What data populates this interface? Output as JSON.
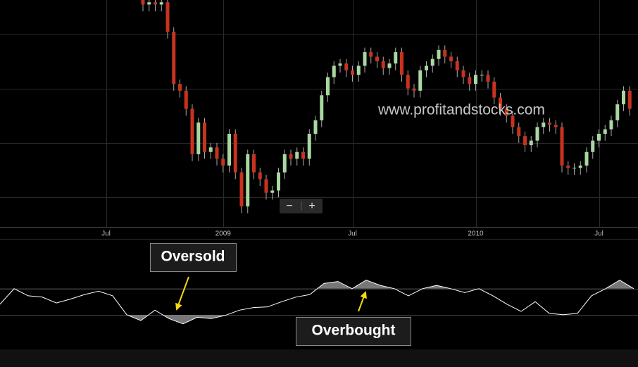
{
  "chart_data": [
    {
      "type": "candlestick",
      "watermark": "www.profitandstocks.com",
      "categories": [
        null,
        "Jul",
        null,
        null,
        null,
        null,
        null,
        null,
        null,
        null,
        null,
        null,
        null,
        null,
        null,
        null,
        null,
        null,
        null,
        null,
        "2009",
        null,
        null,
        null,
        null,
        null,
        null,
        null,
        null,
        null,
        null,
        null,
        null,
        null,
        null,
        null,
        null,
        null,
        null,
        null,
        null,
        "Jul",
        null,
        null,
        null,
        null,
        null,
        null,
        null,
        null,
        null,
        null,
        null,
        null,
        null,
        null,
        null,
        null,
        null,
        null,
        null,
        "2010",
        null,
        null,
        null,
        null,
        null,
        null,
        null,
        null,
        null,
        null,
        null,
        null,
        null,
        null,
        null,
        null,
        null,
        null,
        null,
        "Jul",
        null,
        null,
        null,
        null,
        null
      ],
      "open": [
        null,
        null,
        null,
        null,
        null,
        null,
        null,
        100,
        98,
        99,
        98,
        99,
        86,
        63,
        60,
        52,
        32,
        46,
        33,
        35,
        30,
        27,
        41,
        24,
        9,
        32,
        24,
        21,
        15,
        16,
        24,
        32,
        30,
        33,
        30,
        41,
        47,
        58,
        66,
        71,
        72,
        69,
        67,
        71,
        77,
        75,
        73,
        70,
        72,
        77,
        67,
        61,
        60,
        69,
        71,
        74,
        78,
        75,
        73,
        69,
        66,
        63,
        67,
        67,
        64,
        57,
        52,
        49,
        44,
        40,
        36,
        38,
        44,
        46,
        45,
        44,
        27,
        26,
        26,
        27,
        33,
        38,
        41,
        43,
        47,
        54,
        60
      ],
      "high": [
        null,
        null,
        null,
        null,
        null,
        null,
        null,
        102,
        101,
        101,
        101,
        101,
        88,
        65,
        62,
        54,
        48,
        48,
        37,
        37,
        32,
        43,
        43,
        26,
        34,
        34,
        26,
        23,
        18,
        26,
        34,
        34,
        35,
        35,
        43,
        49,
        60,
        68,
        73,
        74,
        74,
        71,
        73,
        79,
        79,
        77,
        75,
        74,
        79,
        79,
        69,
        63,
        71,
        73,
        76,
        80,
        80,
        77,
        75,
        71,
        68,
        69,
        69,
        69,
        66,
        59,
        54,
        51,
        46,
        42,
        40,
        46,
        48,
        48,
        47,
        46,
        29,
        28,
        29,
        35,
        40,
        43,
        45,
        49,
        56,
        62,
        62
      ],
      "low": [
        null,
        null,
        null,
        null,
        null,
        null,
        null,
        95,
        95,
        95,
        95,
        83,
        60,
        57,
        49,
        29,
        29,
        30,
        30,
        27,
        24,
        24,
        21,
        6,
        6,
        21,
        18,
        12,
        12,
        13,
        21,
        27,
        27,
        27,
        27,
        38,
        44,
        55,
        63,
        68,
        66,
        64,
        64,
        68,
        72,
        70,
        67,
        67,
        69,
        64,
        58,
        57,
        57,
        66,
        68,
        71,
        72,
        70,
        66,
        63,
        60,
        60,
        64,
        61,
        54,
        49,
        46,
        41,
        37,
        33,
        33,
        35,
        41,
        42,
        41,
        24,
        23,
        23,
        23,
        24,
        30,
        35,
        38,
        40,
        44,
        51,
        49
      ],
      "close": [
        null,
        null,
        null,
        null,
        null,
        null,
        null,
        98,
        99,
        98,
        99,
        86,
        63,
        60,
        52,
        32,
        46,
        33,
        35,
        30,
        27,
        41,
        24,
        9,
        32,
        24,
        21,
        15,
        16,
        24,
        32,
        30,
        33,
        30,
        41,
        47,
        58,
        66,
        71,
        72,
        69,
        67,
        71,
        77,
        75,
        73,
        70,
        72,
        77,
        67,
        61,
        60,
        69,
        71,
        74,
        78,
        75,
        73,
        69,
        66,
        63,
        67,
        67,
        64,
        57,
        52,
        49,
        44,
        40,
        36,
        38,
        44,
        46,
        45,
        44,
        27,
        26,
        26,
        27,
        33,
        38,
        41,
        43,
        47,
        54,
        60,
        52
      ],
      "up_color": "#a8d8a0",
      "down_color": "#c8321e",
      "ylim": [
        0,
        100
      ],
      "yticks": [
        85,
        61,
        37,
        13
      ],
      "grid": true
    },
    {
      "type": "line",
      "annotations": [
        "Oversold",
        "Overbought"
      ],
      "values": [
        46,
        70,
        59,
        57,
        48,
        54,
        61,
        66,
        59,
        30,
        21,
        37,
        24,
        16,
        26,
        24,
        29,
        37,
        41,
        42,
        50,
        57,
        61,
        78,
        81,
        70,
        83,
        75,
        70,
        59,
        70,
        75,
        70,
        64,
        70,
        59,
        46,
        35,
        50,
        32,
        30,
        32,
        59,
        70,
        83,
        70
      ],
      "color": "#ffffff",
      "levels": [
        70,
        30
      ],
      "ylim": [
        0,
        100
      ]
    }
  ],
  "controls": {
    "zoom_out": "−",
    "zoom_in": "+"
  }
}
